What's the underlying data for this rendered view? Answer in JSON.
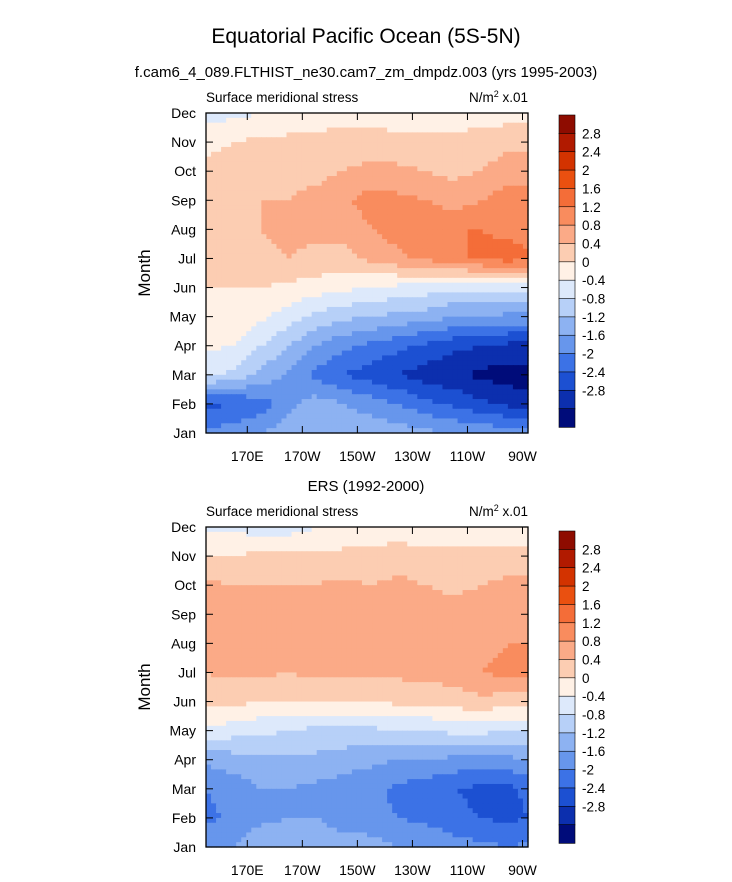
{
  "figure": {
    "title": "Equatorial Pacific Ocean (5S-5N)",
    "subtitle": "f.cam6_4_089.FLTHIST_ne30.cam7_zm_dmpdz.003 (yrs 1995-2003)"
  },
  "chart_data": [
    {
      "type": "heatmap",
      "panel_title": "",
      "left_label": "Surface meridional stress",
      "units_label": "N/m² x.01",
      "ylabel": "Month",
      "xlabel": "",
      "x_ticks": [
        "170E",
        "170W",
        "150W",
        "130W",
        "110W",
        "90W"
      ],
      "x_tick_lon": [
        170,
        190,
        210,
        230,
        250,
        270
      ],
      "xlim_lon": [
        155,
        272
      ],
      "y_ticks": [
        "Jan",
        "Feb",
        "Mar",
        "Apr",
        "May",
        "Jun",
        "Jul",
        "Aug",
        "Sep",
        "Oct",
        "Nov",
        "Dec"
      ],
      "colorbar": {
        "labels": [
          "2.8",
          "2.4",
          "2",
          "1.6",
          "1.2",
          "0.8",
          "0.4",
          "0",
          "-0.4",
          "-0.8",
          "-1.2",
          "-1.6",
          "-2",
          "-2.4",
          "-2.8"
        ],
        "colors": [
          "#8e0c00",
          "#b11a00",
          "#d33300",
          "#ea5010",
          "#f46d38",
          "#f98c5e",
          "#fbaa87",
          "#fccdb2",
          "#fff1e6",
          "#dde9fb",
          "#b7d0f8",
          "#8db2f2",
          "#6796ec",
          "#3c72e6",
          "#1c50d2",
          "#0c2fae",
          "#000c7a"
        ],
        "levels": [
          -2.8,
          -2.4,
          -2.0,
          -1.6,
          -1.2,
          -0.8,
          -0.4,
          0.0,
          0.4,
          0.8,
          1.2,
          1.6,
          2.0,
          2.4,
          2.8
        ]
      },
      "lon": [
        155,
        165,
        175,
        185,
        195,
        205,
        215,
        225,
        235,
        245,
        255,
        265,
        272
      ],
      "months": [
        "Jan",
        "Feb",
        "Mar",
        "Apr",
        "May",
        "Jun",
        "Jul",
        "Aug",
        "Sep",
        "Oct",
        "Nov",
        "Dec"
      ],
      "values": [
        [
          -1.5,
          -1.4,
          -1.2,
          -1.0,
          -1.0,
          -0.9,
          -0.9,
          -1.0,
          -1.1,
          -1.2,
          -1.3,
          -1.4,
          -1.4
        ],
        [
          -2.1,
          -2.0,
          -1.8,
          -1.3,
          -1.0,
          -1.2,
          -1.4,
          -1.6,
          -1.9,
          -2.1,
          -2.3,
          -2.5,
          -2.6
        ],
        [
          -0.3,
          -0.5,
          -0.9,
          -1.3,
          -1.7,
          -2.0,
          -2.2,
          -2.4,
          -2.6,
          -2.7,
          -2.9,
          -3.0,
          -3.0
        ],
        [
          0.1,
          0.0,
          -0.4,
          -0.8,
          -1.2,
          -1.5,
          -1.7,
          -1.9,
          -2.1,
          -2.3,
          -2.4,
          -2.5,
          -2.5
        ],
        [
          0.3,
          0.3,
          0.1,
          -0.2,
          -0.5,
          -0.7,
          -0.8,
          -0.9,
          -1.0,
          -1.2,
          -1.2,
          -1.3,
          -1.3
        ],
        [
          0.4,
          0.4,
          0.4,
          0.3,
          0.2,
          0.1,
          0.0,
          -0.1,
          -0.2,
          -0.3,
          -0.3,
          -0.3,
          -0.3
        ],
        [
          0.5,
          0.6,
          0.7,
          0.8,
          0.7,
          0.7,
          0.9,
          1.1,
          1.3,
          1.5,
          1.7,
          1.8,
          1.7
        ],
        [
          0.6,
          0.7,
          0.8,
          0.9,
          0.9,
          0.9,
          1.2,
          1.4,
          1.5,
          1.6,
          1.6,
          1.5,
          1.4
        ],
        [
          0.6,
          0.7,
          0.8,
          0.8,
          0.9,
          1.1,
          1.4,
          1.3,
          1.2,
          1.0,
          1.2,
          1.4,
          1.4
        ],
        [
          0.5,
          0.6,
          0.7,
          0.7,
          0.7,
          0.8,
          0.9,
          0.9,
          0.8,
          0.7,
          0.8,
          1.0,
          1.0
        ],
        [
          0.3,
          0.4,
          0.5,
          0.5,
          0.5,
          0.6,
          0.6,
          0.5,
          0.5,
          0.5,
          0.6,
          0.7,
          0.7
        ],
        [
          -0.2,
          -0.1,
          0.0,
          0.1,
          0.2,
          0.2,
          0.2,
          0.2,
          0.2,
          0.2,
          0.2,
          0.2,
          0.2
        ]
      ]
    },
    {
      "type": "heatmap",
      "panel_title": "ERS (1992-2000)",
      "left_label": "Surface meridional stress",
      "units_label": "N/m² x.01",
      "ylabel": "Month",
      "xlabel": "",
      "x_ticks": [
        "170E",
        "170W",
        "150W",
        "130W",
        "110W",
        "90W"
      ],
      "x_tick_lon": [
        170,
        190,
        210,
        230,
        250,
        270
      ],
      "xlim_lon": [
        155,
        272
      ],
      "y_ticks": [
        "Jan",
        "Feb",
        "Mar",
        "Apr",
        "May",
        "Jun",
        "Jul",
        "Aug",
        "Sep",
        "Oct",
        "Nov",
        "Dec"
      ],
      "colorbar": {
        "labels": [
          "2.8",
          "2.4",
          "2",
          "1.6",
          "1.2",
          "0.8",
          "0.4",
          "0",
          "-0.4",
          "-0.8",
          "-1.2",
          "-1.6",
          "-2",
          "-2.4",
          "-2.8"
        ],
        "colors": [
          "#8e0c00",
          "#b11a00",
          "#d33300",
          "#ea5010",
          "#f46d38",
          "#f98c5e",
          "#fbaa87",
          "#fccdb2",
          "#fff1e6",
          "#dde9fb",
          "#b7d0f8",
          "#8db2f2",
          "#6796ec",
          "#3c72e6",
          "#1c50d2",
          "#0c2fae",
          "#000c7a"
        ],
        "levels": [
          -2.8,
          -2.4,
          -2.0,
          -1.6,
          -1.2,
          -0.8,
          -0.4,
          0.0,
          0.4,
          0.8,
          1.2,
          1.6,
          2.0,
          2.4,
          2.8
        ]
      },
      "lon": [
        155,
        165,
        175,
        185,
        195,
        205,
        215,
        225,
        235,
        245,
        255,
        265,
        272
      ],
      "months": [
        "Jan",
        "Feb",
        "Mar",
        "Apr",
        "May",
        "Jun",
        "Jul",
        "Aug",
        "Sep",
        "Oct",
        "Nov",
        "Dec"
      ],
      "values": [
        [
          -1.3,
          -1.2,
          -0.9,
          -0.8,
          -0.9,
          -1.0,
          -1.0,
          -1.2,
          -1.2,
          -1.4,
          -1.5,
          -1.6,
          -1.5
        ],
        [
          -1.7,
          -1.5,
          -1.3,
          -1.2,
          -1.2,
          -1.4,
          -1.5,
          -1.6,
          -1.7,
          -1.9,
          -2.0,
          -2.1,
          -2.0
        ],
        [
          -1.6,
          -1.4,
          -1.2,
          -1.2,
          -1.3,
          -1.4,
          -1.5,
          -1.7,
          -1.8,
          -2.0,
          -2.1,
          -2.1,
          -1.9
        ],
        [
          -1.1,
          -1.0,
          -0.9,
          -0.9,
          -0.9,
          -1.0,
          -1.1,
          -1.2,
          -1.2,
          -1.3,
          -1.3,
          -1.3,
          -1.2
        ],
        [
          -0.1,
          -0.2,
          -0.3,
          -0.4,
          -0.5,
          -0.5,
          -0.5,
          -0.4,
          -0.4,
          -0.3,
          -0.3,
          -0.4,
          -0.4
        ],
        [
          0.5,
          0.5,
          0.4,
          0.4,
          0.4,
          0.4,
          0.4,
          0.5,
          0.5,
          0.6,
          0.7,
          0.6,
          0.6
        ],
        [
          0.8,
          0.9,
          0.9,
          0.8,
          0.9,
          0.9,
          0.9,
          0.9,
          0.9,
          1.0,
          1.2,
          1.3,
          1.3
        ],
        [
          0.9,
          1.0,
          0.9,
          0.9,
          0.9,
          1.0,
          1.0,
          1.1,
          1.0,
          1.0,
          1.1,
          1.2,
          1.2
        ],
        [
          1.1,
          1.0,
          1.0,
          1.0,
          1.0,
          1.1,
          1.1,
          1.2,
          1.0,
          1.0,
          1.0,
          1.0,
          1.0
        ],
        [
          0.9,
          0.8,
          0.8,
          0.8,
          0.8,
          0.9,
          0.8,
          0.9,
          0.8,
          0.7,
          0.8,
          0.9,
          0.9
        ],
        [
          0.4,
          0.4,
          0.5,
          0.5,
          0.5,
          0.5,
          0.5,
          0.6,
          0.5,
          0.5,
          0.5,
          0.6,
          0.5
        ],
        [
          -0.1,
          -0.1,
          -0.2,
          -0.2,
          0.0,
          0.1,
          0.1,
          0.2,
          0.1,
          0.1,
          0.1,
          0.1,
          0.1
        ]
      ]
    }
  ]
}
